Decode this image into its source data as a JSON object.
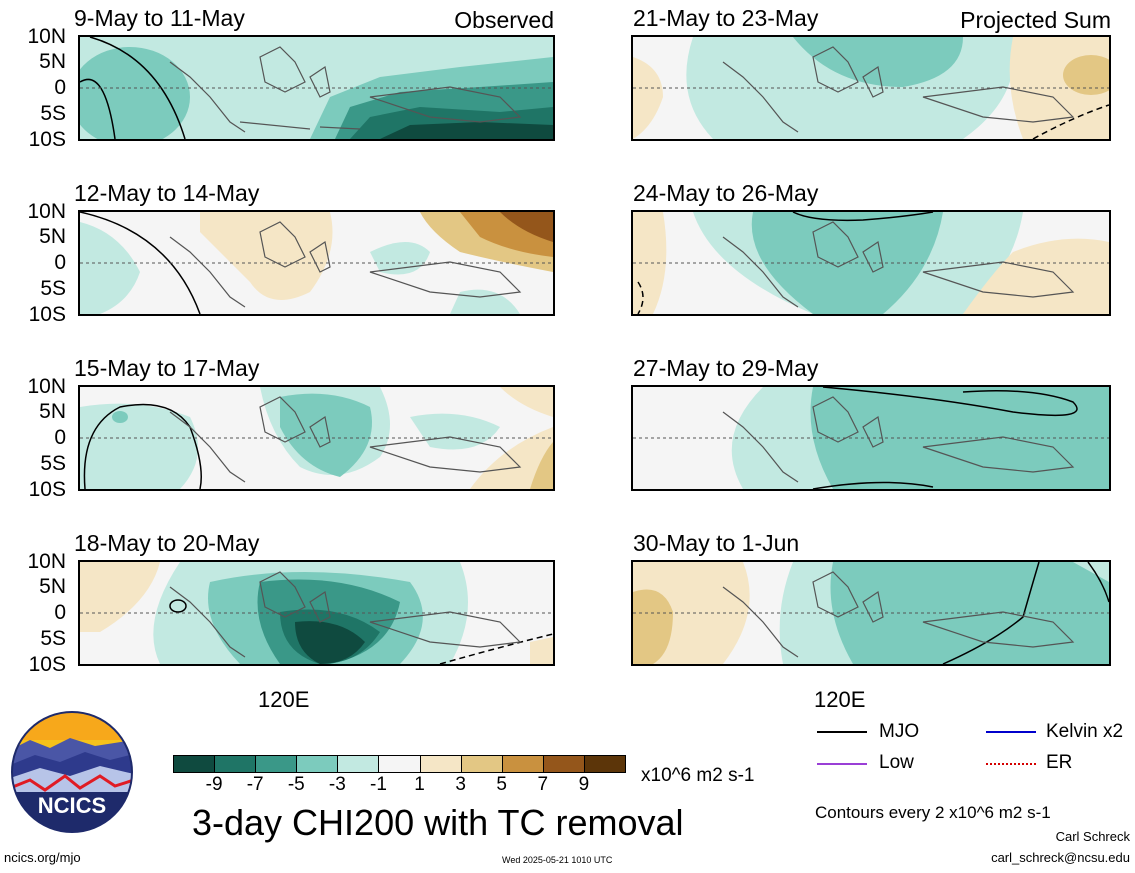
{
  "panel_tags": {
    "observed": "Observed",
    "projected": "Projected Sum"
  },
  "x_tick_label": "120E",
  "y_tick_labels": [
    "10N",
    "5N",
    "0",
    "5S",
    "10S"
  ],
  "colorbar": {
    "colors": [
      "#0f4a3f",
      "#1f7566",
      "#3a9888",
      "#7ccbbd",
      "#c2e9e1",
      "#f5f5f5",
      "#f5e6c6",
      "#e3c784",
      "#c9913f",
      "#94561b",
      "#5c3509"
    ],
    "tick_labels": [
      "-9",
      "-7",
      "-5",
      "-3",
      "-1",
      "1",
      "3",
      "5",
      "7",
      "9"
    ],
    "units": "x10^6 m2 s-1"
  },
  "title": "3-day CHI200 with TC removal",
  "legend": [
    {
      "label": "MJO",
      "color": "#000000",
      "style": "solid"
    },
    {
      "label": "Kelvin x2",
      "color": "#0000cc",
      "style": "solid"
    },
    {
      "label": "Low",
      "color": "#9a3fd6",
      "style": "solid"
    },
    {
      "label": "ER",
      "color": "#d40000",
      "style": "dotted"
    }
  ],
  "contours_note": "Contours every 2 x10^6 m2 s-1",
  "author": "Carl Schreck",
  "email": "carl_schreck@ncsu.edu",
  "website": "ncics.org/mjo",
  "timestamp": "Wed 2025-05-21 1010 UTC",
  "logo_text": "NCICS",
  "chart_data": [
    {
      "type": "heatmap",
      "title": "9-May to 11-May",
      "group": "Observed",
      "x_tick": "120E",
      "ylim": [
        -10,
        10
      ],
      "values": {
        "west": -3,
        "central_north": -3,
        "east_south": -9,
        "east_north": -3
      },
      "mjo_contour": true
    },
    {
      "type": "heatmap",
      "title": "12-May to 14-May",
      "group": "Observed",
      "x_tick": "120E",
      "ylim": [
        -10,
        10
      ],
      "values": {
        "west": -1,
        "central": 1,
        "east_north": 7,
        "east_south": -1
      },
      "mjo_contour": true
    },
    {
      "type": "heatmap",
      "title": "15-May to 17-May",
      "group": "Observed",
      "x_tick": "120E",
      "ylim": [
        -10,
        10
      ],
      "values": {
        "west": -1,
        "central": -3,
        "east_north": 1,
        "east_south": 3
      },
      "mjo_contour": true
    },
    {
      "type": "heatmap",
      "title": "18-May to 20-May",
      "group": "Observed",
      "x_tick": "120E",
      "ylim": [
        -10,
        10
      ],
      "values": {
        "west": 1,
        "central": -5,
        "central_south": -9,
        "east": -1
      },
      "mjo_contour": true
    },
    {
      "type": "heatmap",
      "title": "21-May to 23-May",
      "group": "Projected Sum",
      "x_tick": "120E",
      "ylim": [
        -10,
        10
      ],
      "values": {
        "west": 1,
        "central_north": -3,
        "central": -1,
        "east": 3
      },
      "mjo_contour": true
    },
    {
      "type": "heatmap",
      "title": "24-May to 26-May",
      "group": "Projected Sum",
      "x_tick": "120E",
      "ylim": [
        -10,
        10
      ],
      "values": {
        "west": 1,
        "central": -3,
        "east": 1
      },
      "mjo_contour": true
    },
    {
      "type": "heatmap",
      "title": "27-May to 29-May",
      "group": "Projected Sum",
      "x_tick": "120E",
      "ylim": [
        -10,
        10
      ],
      "values": {
        "west": -1,
        "central": -3,
        "east": -3
      },
      "mjo_contour": true
    },
    {
      "type": "heatmap",
      "title": "30-May to 1-Jun",
      "group": "Projected Sum",
      "x_tick": "120E",
      "ylim": [
        -10,
        10
      ],
      "values": {
        "west": 3,
        "central": -3,
        "east": -3
      },
      "mjo_contour": true
    }
  ]
}
